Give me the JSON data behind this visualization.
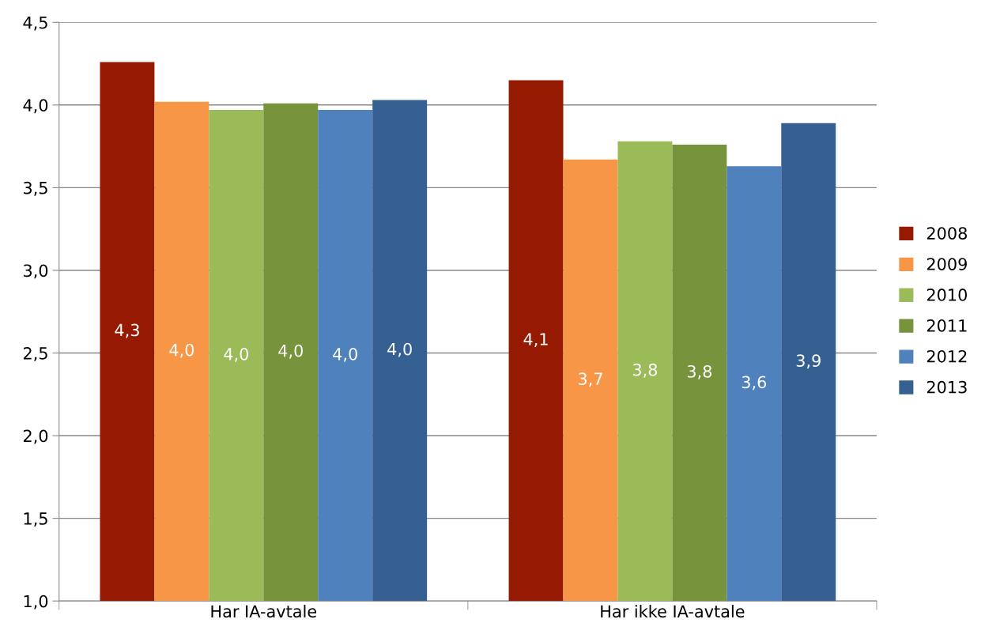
{
  "chart_data": {
    "type": "bar",
    "categories": [
      "Har IA-avtale",
      "Har ikke IA-avtale"
    ],
    "series": [
      {
        "name": "2008",
        "color": "#961a02",
        "values": [
          4.26,
          4.15
        ],
        "value_labels": [
          "4,3",
          "4,1"
        ]
      },
      {
        "name": "2009",
        "color": "#f79646",
        "values": [
          4.02,
          3.67
        ],
        "value_labels": [
          "4,0",
          "3,7"
        ]
      },
      {
        "name": "2010",
        "color": "#9bbb59",
        "values": [
          3.97,
          3.78
        ],
        "value_labels": [
          "4,0",
          "3,8"
        ]
      },
      {
        "name": "2011",
        "color": "#77933c",
        "values": [
          4.01,
          3.76
        ],
        "value_labels": [
          "4,0",
          "3,8"
        ]
      },
      {
        "name": "2012",
        "color": "#4f81bd",
        "values": [
          3.97,
          3.63
        ],
        "value_labels": [
          "4,0",
          "3,6"
        ]
      },
      {
        "name": "2013",
        "color": "#366092",
        "values": [
          4.03,
          3.89
        ],
        "value_labels": [
          "4,0",
          "3,9"
        ]
      }
    ],
    "ylim": [
      1.0,
      4.5
    ],
    "yticks": [
      {
        "value": 1.0,
        "label": "1,0"
      },
      {
        "value": 1.5,
        "label": "1,5"
      },
      {
        "value": 2.0,
        "label": "2,0"
      },
      {
        "value": 2.5,
        "label": "2,5"
      },
      {
        "value": 3.0,
        "label": "3,0"
      },
      {
        "value": 3.5,
        "label": "3,5"
      },
      {
        "value": 4.0,
        "label": "4,0"
      },
      {
        "value": 4.5,
        "label": "4,5"
      }
    ],
    "grid": "y",
    "legend": "right"
  }
}
